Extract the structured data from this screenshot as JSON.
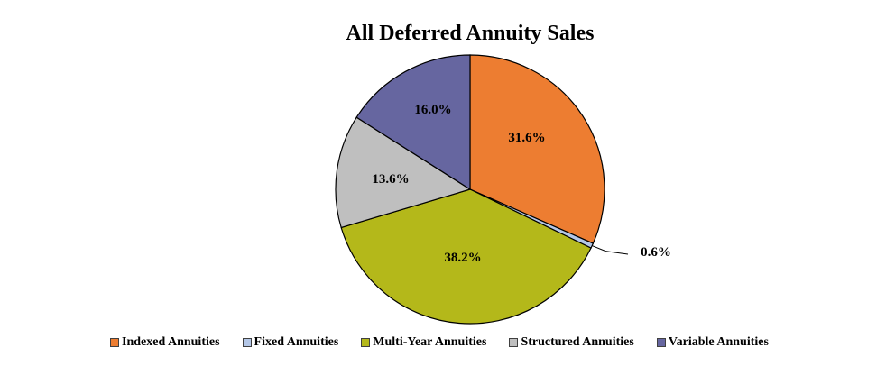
{
  "chart_data": {
    "type": "pie",
    "title": "All Deferred Annuity Sales",
    "categories": [
      "Indexed Annuities",
      "Fixed Annuities",
      "Multi-Year Annuities",
      "Structured Annuities",
      "Variable Annuities"
    ],
    "values": [
      31.6,
      0.6,
      38.2,
      13.6,
      16.0
    ],
    "labels": [
      "31.6%",
      "0.6%",
      "38.2%",
      "13.6%",
      "16.0%"
    ],
    "colors": [
      "#ED7D31",
      "#B4C7E7",
      "#B4B81A",
      "#BFBFBF",
      "#6666A0"
    ],
    "legend_position": "bottom",
    "start_angle_deg": 0,
    "direction": "clockwise"
  },
  "legend": [
    {
      "label": "Indexed Annuities",
      "color": "#ED7D31"
    },
    {
      "label": "Fixed Annuities",
      "color": "#B4C7E7"
    },
    {
      "label": "Multi-Year Annuities",
      "color": "#B4B81A"
    },
    {
      "label": "Structured Annuities",
      "color": "#BFBFBF"
    },
    {
      "label": "Variable Annuities",
      "color": "#6666A0"
    }
  ]
}
